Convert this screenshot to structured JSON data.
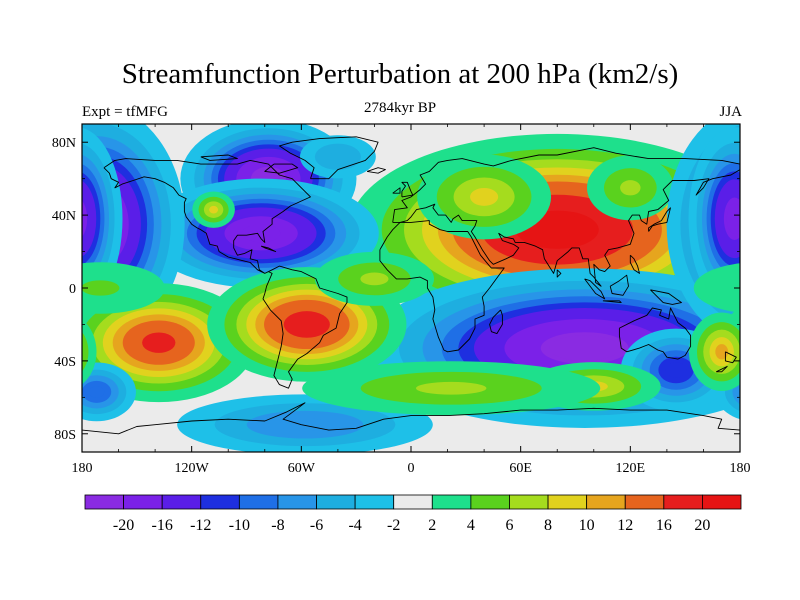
{
  "title": "Streamfunction Perturbation at 200 hPa (km2/s)",
  "left_subtitle": "Expt = tfMFG",
  "center_subtitle": "2784kyr BP",
  "right_subtitle": "JJA",
  "axes": {
    "x_ticks": [
      "180",
      "120W",
      "60W",
      "0",
      "60E",
      "120E",
      "180"
    ],
    "x_values": [
      -180,
      -120,
      -60,
      0,
      60,
      120,
      180
    ],
    "y_ticks": [
      "80N",
      "40N",
      "0",
      "40S",
      "80S"
    ],
    "y_values": [
      80,
      40,
      0,
      -40,
      -80
    ],
    "xlim": [
      -180,
      180
    ],
    "ylim": [
      -90,
      90
    ]
  },
  "colorbar": {
    "labels": [
      "-20",
      "-16",
      "-12",
      "-10",
      "-8",
      "-6",
      "-4",
      "-2",
      "2",
      "4",
      "6",
      "8",
      "10",
      "12",
      "16",
      "20"
    ],
    "colors": [
      "#8a2be2",
      "#7b21e8",
      "#5a1ee8",
      "#1e2fe0",
      "#1f6fe6",
      "#2895e8",
      "#1eaee0",
      "#1ec0e8",
      "#ebebeb",
      "#1ee08c",
      "#5ad21e",
      "#a5dc1e",
      "#e1d21e",
      "#e6a51e",
      "#e6641e",
      "#e61e1e",
      "#e61414"
    ]
  },
  "fields": {
    "anomalies": [
      {
        "lon": 80,
        "lat": 32,
        "rx": 52,
        "ry": 24,
        "value": 22
      },
      {
        "lon": 40,
        "lat": 50,
        "rx": 22,
        "ry": 14,
        "value": 8
      },
      {
        "lon": 120,
        "lat": 55,
        "rx": 16,
        "ry": 12,
        "value": 6
      },
      {
        "lon": 95,
        "lat": -33,
        "rx": 55,
        "ry": 20,
        "value": -22
      },
      {
        "lon": 145,
        "lat": -45,
        "rx": 16,
        "ry": 12,
        "value": -12
      },
      {
        "lon": -78,
        "lat": 60,
        "rx": 22,
        "ry": 15,
        "value": -22
      },
      {
        "lon": -82,
        "lat": 30,
        "rx": 30,
        "ry": 14,
        "value": -20
      },
      {
        "lon": -172,
        "lat": 35,
        "rx": 22,
        "ry": 30,
        "value": -22
      },
      {
        "lon": 177,
        "lat": 38,
        "rx": 12,
        "ry": 24,
        "value": -18
      },
      {
        "lon": -40,
        "lat": 72,
        "rx": 14,
        "ry": 8,
        "value": -6
      },
      {
        "lon": -108,
        "lat": 43,
        "rx": 7,
        "ry": 6,
        "value": 8
      },
      {
        "lon": -138,
        "lat": -30,
        "rx": 26,
        "ry": 16,
        "value": 16
      },
      {
        "lon": -57,
        "lat": -20,
        "rx": 26,
        "ry": 15,
        "value": 18
      },
      {
        "lon": -20,
        "lat": 5,
        "rx": 22,
        "ry": 10,
        "value": 6
      },
      {
        "lon": 100,
        "lat": -54,
        "rx": 22,
        "ry": 8,
        "value": 8
      },
      {
        "lon": -172,
        "lat": -57,
        "rx": 12,
        "ry": 9,
        "value": -10
      },
      {
        "lon": -58,
        "lat": -75,
        "rx": 42,
        "ry": 10,
        "value": -8
      },
      {
        "lon": 170,
        "lat": -35,
        "rx": 10,
        "ry": 12,
        "value": 10
      },
      {
        "lon": 22,
        "lat": -55,
        "rx": 55,
        "ry": 10,
        "value": 6
      },
      {
        "lon": -170,
        "lat": 0,
        "rx": 30,
        "ry": 12,
        "value": 4
      }
    ]
  },
  "coastlines": [
    [
      [
        -168,
        66
      ],
      [
        -162,
        70
      ],
      [
        -156,
        71
      ],
      [
        -140,
        70
      ],
      [
        -128,
        70
      ],
      [
        -115,
        68
      ],
      [
        -95,
        68
      ],
      [
        -88,
        70
      ],
      [
        -78,
        68
      ],
      [
        -72,
        62
      ],
      [
        -65,
        60
      ],
      [
        -60,
        55
      ],
      [
        -55,
        50
      ],
      [
        -66,
        45
      ],
      [
        -70,
        42
      ],
      [
        -76,
        38
      ],
      [
        -76,
        35
      ],
      [
        -81,
        31
      ],
      [
        -80,
        25
      ],
      [
        -82,
        27
      ],
      [
        -84,
        30
      ],
      [
        -90,
        29
      ],
      [
        -95,
        29
      ],
      [
        -97,
        26
      ],
      [
        -97,
        22
      ],
      [
        -95,
        18
      ],
      [
        -91,
        19
      ],
      [
        -87,
        21
      ],
      [
        -88,
        16
      ],
      [
        -84,
        15
      ],
      [
        -83,
        10
      ],
      [
        -80,
        8
      ],
      [
        -78,
        9
      ],
      [
        -76,
        8
      ],
      [
        -79,
        1
      ],
      [
        -80,
        -3
      ],
      [
        -81,
        -6
      ],
      [
        -77,
        -12
      ],
      [
        -71,
        -18
      ],
      [
        -70,
        -25
      ],
      [
        -71,
        -32
      ],
      [
        -73,
        -40
      ],
      [
        -75,
        -48
      ],
      [
        -72,
        -53
      ],
      [
        -67,
        -55
      ],
      [
        -65,
        -50
      ],
      [
        -67,
        -46
      ],
      [
        -62,
        -39
      ],
      [
        -57,
        -36
      ],
      [
        -50,
        -30
      ],
      [
        -48,
        -26
      ],
      [
        -41,
        -22
      ],
      [
        -39,
        -14
      ],
      [
        -35,
        -8
      ],
      [
        -35,
        -5
      ],
      [
        -40,
        -3
      ],
      [
        -50,
        0
      ],
      [
        -52,
        5
      ],
      [
        -60,
        9
      ],
      [
        -65,
        10
      ],
      [
        -72,
        12
      ],
      [
        -76,
        10
      ],
      [
        -80,
        8
      ],
      [
        -84,
        10
      ],
      [
        -86,
        12
      ],
      [
        -88,
        14
      ],
      [
        -92,
        15
      ],
      [
        -96,
        16
      ],
      [
        -100,
        17
      ],
      [
        -105,
        20
      ],
      [
        -106,
        23
      ],
      [
        -110,
        24
      ],
      [
        -112,
        30
      ],
      [
        -115,
        32
      ],
      [
        -117,
        33
      ],
      [
        -120,
        35
      ],
      [
        -123,
        39
      ],
      [
        -124,
        42
      ],
      [
        -124,
        47
      ],
      [
        -123,
        49
      ],
      [
        -127,
        51
      ],
      [
        -130,
        55
      ],
      [
        -135,
        58
      ],
      [
        -140,
        60
      ],
      [
        -146,
        61
      ],
      [
        -152,
        59
      ],
      [
        -158,
        57
      ],
      [
        -162,
        55
      ],
      [
        -160,
        58
      ],
      [
        -164,
        60
      ],
      [
        -165,
        63
      ],
      [
        -168,
        66
      ]
    ],
    [
      [
        -55,
        60
      ],
      [
        -45,
        60
      ],
      [
        -40,
        65
      ],
      [
        -25,
        70
      ],
      [
        -20,
        75
      ],
      [
        -18,
        80
      ],
      [
        -30,
        83
      ],
      [
        -50,
        82
      ],
      [
        -65,
        80
      ],
      [
        -72,
        78
      ],
      [
        -66,
        74
      ],
      [
        -58,
        70
      ],
      [
        -53,
        66
      ],
      [
        -55,
        60
      ]
    ],
    [
      [
        -10,
        36
      ],
      [
        -9,
        43
      ],
      [
        -2,
        44
      ],
      [
        -5,
        48
      ],
      [
        0,
        50
      ],
      [
        5,
        54
      ],
      [
        8,
        57
      ],
      [
        5,
        62
      ],
      [
        10,
        64
      ],
      [
        15,
        69
      ],
      [
        20,
        70
      ],
      [
        28,
        71
      ],
      [
        40,
        68
      ],
      [
        45,
        67
      ],
      [
        55,
        70
      ],
      [
        70,
        73
      ],
      [
        80,
        73
      ],
      [
        100,
        77
      ],
      [
        112,
        74
      ],
      [
        130,
        71
      ],
      [
        150,
        71
      ],
      [
        170,
        70
      ],
      [
        180,
        68
      ],
      [
        180,
        65
      ],
      [
        175,
        62
      ],
      [
        165,
        60
      ],
      [
        160,
        58
      ],
      [
        156,
        51
      ],
      [
        160,
        55
      ],
      [
        163,
        60
      ],
      [
        155,
        59
      ],
      [
        143,
        59
      ],
      [
        138,
        54
      ],
      [
        141,
        48
      ],
      [
        135,
        43
      ],
      [
        130,
        42
      ],
      [
        129,
        35
      ],
      [
        126,
        37
      ],
      [
        125,
        40
      ],
      [
        121,
        40
      ],
      [
        119,
        37
      ],
      [
        122,
        30
      ],
      [
        120,
        24
      ],
      [
        113,
        22
      ],
      [
        108,
        21
      ],
      [
        106,
        18
      ],
      [
        109,
        12
      ],
      [
        106,
        9
      ],
      [
        103,
        10
      ],
      [
        100,
        13
      ],
      [
        101,
        3
      ],
      [
        104,
        1
      ],
      [
        100,
        6
      ],
      [
        98,
        8
      ],
      [
        97,
        16
      ],
      [
        94,
        16
      ],
      [
        92,
        22
      ],
      [
        88,
        22
      ],
      [
        86,
        20
      ],
      [
        80,
        15
      ],
      [
        78,
        8
      ],
      [
        73,
        16
      ],
      [
        72,
        21
      ],
      [
        68,
        23
      ],
      [
        62,
        25
      ],
      [
        57,
        25
      ],
      [
        56,
        27
      ],
      [
        51,
        28
      ],
      [
        48,
        30
      ],
      [
        50,
        26
      ],
      [
        56,
        24
      ],
      [
        59,
        22
      ],
      [
        56,
        18
      ],
      [
        52,
        16
      ],
      [
        45,
        13
      ],
      [
        43,
        15
      ],
      [
        39,
        21
      ],
      [
        35,
        28
      ],
      [
        33,
        31
      ],
      [
        35,
        34
      ],
      [
        36,
        37
      ],
      [
        28,
        37
      ],
      [
        26,
        40
      ],
      [
        23,
        38
      ],
      [
        22,
        36
      ],
      [
        19,
        40
      ],
      [
        15,
        40
      ],
      [
        12,
        44
      ],
      [
        13,
        46
      ],
      [
        8,
        44
      ],
      [
        3,
        43
      ],
      [
        0,
        39
      ],
      [
        -2,
        37
      ],
      [
        -6,
        36
      ],
      [
        -10,
        36
      ]
    ],
    [
      [
        -17,
        21
      ],
      [
        -17,
        15
      ],
      [
        -13,
        10
      ],
      [
        -8,
        5
      ],
      [
        -2,
        5
      ],
      [
        5,
        6
      ],
      [
        9,
        4
      ],
      [
        9,
        0
      ],
      [
        12,
        -5
      ],
      [
        13,
        -12
      ],
      [
        12,
        -17
      ],
      [
        15,
        -27
      ],
      [
        18,
        -34
      ],
      [
        20,
        -35
      ],
      [
        26,
        -34
      ],
      [
        32,
        -28
      ],
      [
        35,
        -22
      ],
      [
        35,
        -17
      ],
      [
        40,
        -15
      ],
      [
        40,
        -10
      ],
      [
        39,
        -5
      ],
      [
        43,
        0
      ],
      [
        51,
        11
      ],
      [
        44,
        11
      ],
      [
        43,
        12
      ],
      [
        38,
        18
      ],
      [
        33,
        28
      ],
      [
        31,
        31
      ],
      [
        20,
        31
      ],
      [
        16,
        32
      ],
      [
        10,
        35
      ],
      [
        10,
        37
      ],
      [
        0,
        36
      ],
      [
        -6,
        36
      ],
      [
        -10,
        32
      ],
      [
        -13,
        28
      ],
      [
        -17,
        21
      ]
    ],
    [
      [
        114,
        -22
      ],
      [
        122,
        -18
      ],
      [
        129,
        -15
      ],
      [
        132,
        -11
      ],
      [
        137,
        -12
      ],
      [
        136,
        -15
      ],
      [
        141,
        -17
      ],
      [
        142,
        -11
      ],
      [
        146,
        -19
      ],
      [
        150,
        -22
      ],
      [
        153,
        -26
      ],
      [
        153,
        -32
      ],
      [
        150,
        -37
      ],
      [
        146,
        -39
      ],
      [
        140,
        -38
      ],
      [
        138,
        -35
      ],
      [
        135,
        -34
      ],
      [
        130,
        -31
      ],
      [
        125,
        -33
      ],
      [
        118,
        -35
      ],
      [
        115,
        -33
      ],
      [
        114,
        -26
      ],
      [
        114,
        -22
      ]
    ],
    [
      [
        -180,
        -78
      ],
      [
        -160,
        -80
      ],
      [
        -150,
        -76
      ],
      [
        -140,
        -75
      ],
      [
        -120,
        -73
      ],
      [
        -100,
        -72
      ],
      [
        -80,
        -73
      ],
      [
        -68,
        -68
      ],
      [
        -58,
        -63
      ],
      [
        -62,
        -66
      ],
      [
        -70,
        -72
      ],
      [
        -60,
        -75
      ],
      [
        -45,
        -78
      ],
      [
        -30,
        -77
      ],
      [
        -15,
        -72
      ],
      [
        0,
        -70
      ],
      [
        20,
        -70
      ],
      [
        40,
        -69
      ],
      [
        60,
        -67
      ],
      [
        80,
        -67
      ],
      [
        100,
        -66
      ],
      [
        120,
        -67
      ],
      [
        140,
        -67
      ],
      [
        160,
        -70
      ],
      [
        170,
        -72
      ],
      [
        168,
        -77
      ],
      [
        180,
        -78
      ]
    ],
    [
      [
        49,
        -12
      ],
      [
        50,
        -15
      ],
      [
        50,
        -20
      ],
      [
        47,
        -25
      ],
      [
        44,
        -24
      ],
      [
        43,
        -20
      ],
      [
        45,
        -16
      ],
      [
        49,
        -12
      ]
    ],
    [
      [
        -5,
        50
      ],
      [
        -5,
        53
      ],
      [
        -3,
        56
      ],
      [
        -5,
        58
      ],
      [
        -2,
        58
      ],
      [
        0,
        53
      ],
      [
        1,
        51
      ],
      [
        -5,
        50
      ]
    ],
    [
      [
        -10,
        52
      ],
      [
        -6,
        55
      ],
      [
        -6,
        52
      ],
      [
        -10,
        52
      ]
    ],
    [
      [
        130,
        31
      ],
      [
        132,
        34
      ],
      [
        135,
        35
      ],
      [
        140,
        36
      ],
      [
        141,
        40
      ],
      [
        142,
        44
      ],
      [
        140,
        42
      ],
      [
        137,
        37
      ],
      [
        133,
        35
      ],
      [
        130,
        33
      ],
      [
        130,
        31
      ]
    ],
    [
      [
        95,
        5
      ],
      [
        98,
        4
      ],
      [
        104,
        -2
      ],
      [
        106,
        -6
      ],
      [
        101,
        -3
      ],
      [
        95,
        5
      ]
    ],
    [
      [
        105,
        -7
      ],
      [
        115,
        -8
      ],
      [
        114,
        -7
      ],
      [
        105,
        -7
      ]
    ],
    [
      [
        109,
        1
      ],
      [
        114,
        4
      ],
      [
        118,
        7
      ],
      [
        119,
        1
      ],
      [
        116,
        -4
      ],
      [
        110,
        -3
      ],
      [
        109,
        1
      ]
    ],
    [
      [
        131,
        -1
      ],
      [
        141,
        -3
      ],
      [
        148,
        -8
      ],
      [
        143,
        -9
      ],
      [
        138,
        -8
      ],
      [
        131,
        -1
      ]
    ],
    [
      [
        -82,
        23
      ],
      [
        -78,
        22
      ],
      [
        -74,
        20
      ],
      [
        -80,
        22
      ],
      [
        -82,
        23
      ]
    ],
    [
      [
        172,
        -35
      ],
      [
        178,
        -38
      ],
      [
        176,
        -41
      ],
      [
        172,
        -40
      ],
      [
        172,
        -35
      ]
    ],
    [
      [
        167,
        -46
      ],
      [
        173,
        -43
      ],
      [
        170,
        -46
      ],
      [
        167,
        -46
      ]
    ],
    [
      [
        -24,
        64
      ],
      [
        -18,
        66
      ],
      [
        -14,
        65
      ],
      [
        -18,
        63
      ],
      [
        -24,
        64
      ]
    ],
    [
      [
        -75,
        68
      ],
      [
        -65,
        68
      ],
      [
        -62,
        66
      ],
      [
        -72,
        63
      ],
      [
        -80,
        64
      ],
      [
        -75,
        68
      ]
    ],
    [
      [
        -115,
        72
      ],
      [
        -100,
        73
      ],
      [
        -95,
        71
      ],
      [
        -110,
        70
      ],
      [
        -115,
        72
      ]
    ],
    [
      [
        80,
        10
      ],
      [
        82,
        8
      ],
      [
        80,
        6
      ],
      [
        80,
        10
      ]
    ],
    [
      [
        120,
        18
      ],
      [
        122,
        16
      ],
      [
        124,
        12
      ],
      [
        125,
        8
      ],
      [
        122,
        10
      ],
      [
        120,
        14
      ],
      [
        120,
        18
      ]
    ]
  ]
}
